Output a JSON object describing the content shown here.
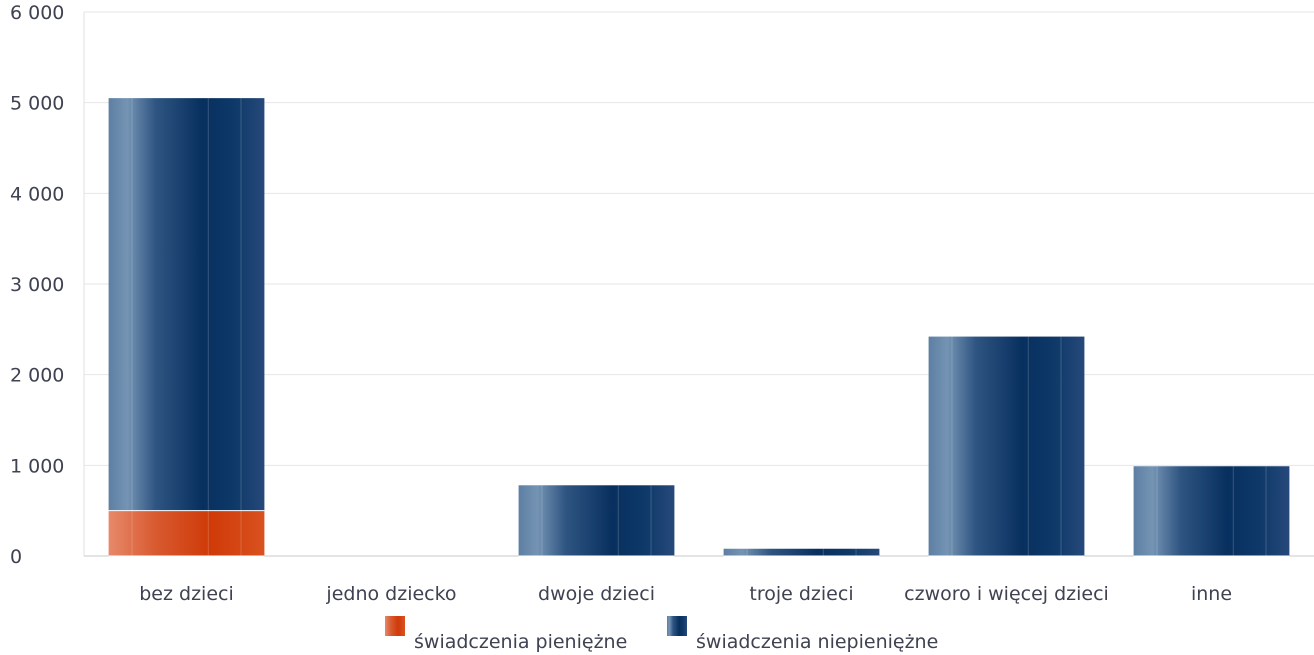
{
  "chart_data": {
    "type": "bar",
    "stacked": true,
    "categories": [
      "bez dzieci",
      "jedno dziecko",
      "dwoje dzieci",
      "troje dzieci",
      "czworo i więcej dzieci",
      "inne"
    ],
    "series": [
      {
        "name": "świadczenia pieniężne",
        "values": [
          500,
          0,
          0,
          0,
          0,
          0
        ],
        "color": "#d23a0f"
      },
      {
        "name": "świadczenia niepieniężne",
        "values": [
          4550,
          0,
          780,
          80,
          2420,
          990
        ],
        "color": "#0b3566"
      }
    ],
    "yticks": [
      0,
      1000,
      2000,
      3000,
      4000,
      5000,
      6000
    ],
    "ytick_labels": [
      "0",
      "1 000",
      "2 000",
      "3 000",
      "4 000",
      "5 000",
      "6 000"
    ],
    "ylim": [
      0,
      6000
    ],
    "grid": true,
    "legend_position": "bottom"
  }
}
